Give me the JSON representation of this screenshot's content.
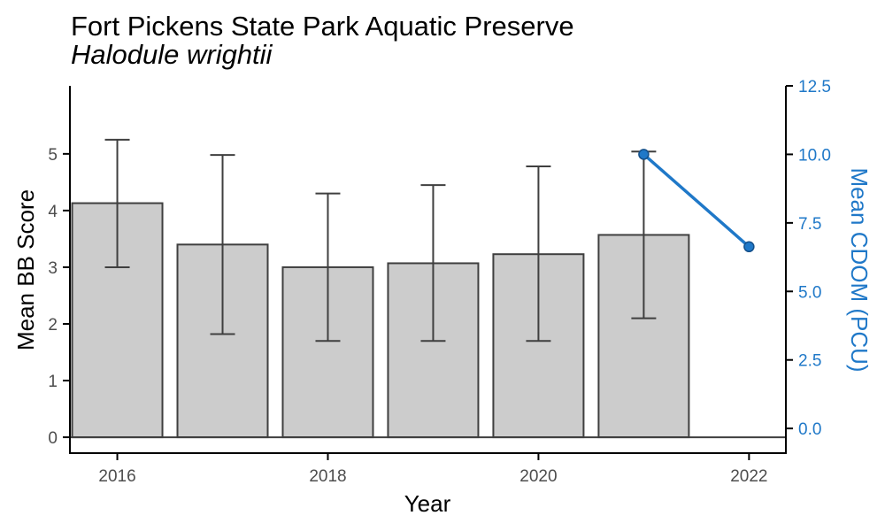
{
  "chart_data": {
    "type": "bar",
    "title": "Fort Pickens State Park Aquatic Preserve",
    "subtitle": "Halodule wrightii",
    "xlabel": "Year",
    "ylabel": "Mean BB Score",
    "y2label": "Mean CDOM (PCU)",
    "xlim": [
      2015.55,
      2022.35
    ],
    "ylim": [
      -0.28,
      6.2
    ],
    "y2lim": [
      -0.9,
      12.5
    ],
    "x_ticks": [
      2016,
      2018,
      2020,
      2022
    ],
    "y_ticks": [
      0,
      1,
      2,
      3,
      4,
      5
    ],
    "y2_ticks": [
      "0.0",
      "2.5",
      "5.0",
      "7.5",
      "10.0",
      "12.5"
    ],
    "grid": false,
    "colors": {
      "bar_fill": "#cccccc",
      "bar_stroke": "#3f3f3f",
      "line": "#1f78c8",
      "axis": "#000000"
    },
    "bars": [
      {
        "x": 2016,
        "value": 4.13,
        "err_low": 3.0,
        "err_high": 5.25
      },
      {
        "x": 2017,
        "value": 3.4,
        "err_low": 1.82,
        "err_high": 4.98
      },
      {
        "x": 2018,
        "value": 3.0,
        "err_low": 1.7,
        "err_high": 4.3
      },
      {
        "x": 2019,
        "value": 3.07,
        "err_low": 1.7,
        "err_high": 4.45
      },
      {
        "x": 2020,
        "value": 3.23,
        "err_low": 1.7,
        "err_high": 4.78
      },
      {
        "x": 2021,
        "value": 3.57,
        "err_low": 2.1,
        "err_high": 5.04
      }
    ],
    "line_series": {
      "name": "Mean CDOM (PCU)",
      "axis": "right",
      "x": [
        2021,
        2022
      ],
      "values": [
        10.0,
        6.63
      ]
    }
  }
}
